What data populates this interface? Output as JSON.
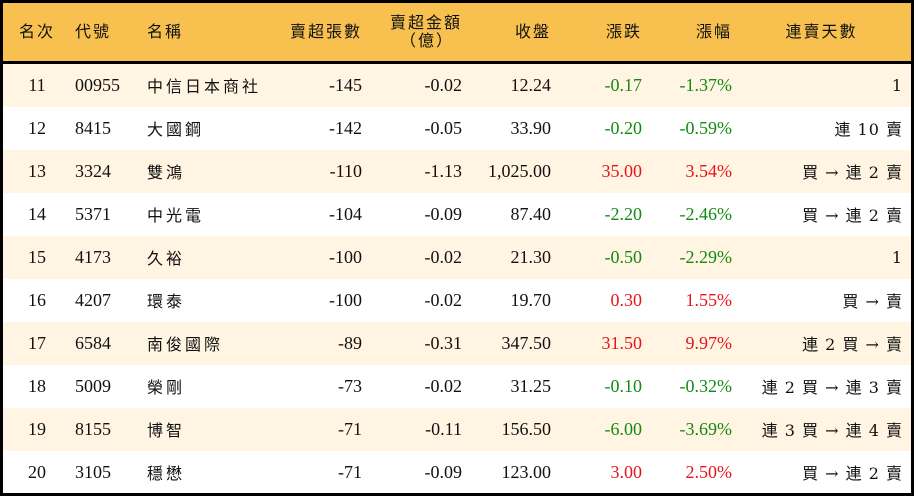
{
  "colors": {
    "header": "#F8C14F",
    "row_alt": "#FFF5E2",
    "up": "#E8141B",
    "down": "#138A12"
  },
  "headers": {
    "rank": "名次",
    "code": "代號",
    "name": "名稱",
    "net_sell_lots": "賣超張數",
    "net_sell_amount": "賣超金額",
    "net_sell_amount_unit": "（億）",
    "close": "收盤",
    "change": "漲跌",
    "change_pct": "漲幅",
    "streak": "連賣天數"
  },
  "rows": [
    {
      "rank": "11",
      "code": "00955",
      "name": "中信日本商社",
      "lots": "-145",
      "amount": "-0.02",
      "close": "12.24",
      "change": "-0.17",
      "pct": "-1.37%",
      "streak": "1",
      "dir": "down"
    },
    {
      "rank": "12",
      "code": "8415",
      "name": "大國鋼",
      "lots": "-142",
      "amount": "-0.05",
      "close": "33.90",
      "change": "-0.20",
      "pct": "-0.59%",
      "streak": "連 10 賣",
      "dir": "down"
    },
    {
      "rank": "13",
      "code": "3324",
      "name": "雙鴻",
      "lots": "-110",
      "amount": "-1.13",
      "close": "1,025.00",
      "change": "35.00",
      "pct": "3.54%",
      "streak": "買 → 連 2 賣",
      "dir": "up"
    },
    {
      "rank": "14",
      "code": "5371",
      "name": "中光電",
      "lots": "-104",
      "amount": "-0.09",
      "close": "87.40",
      "change": "-2.20",
      "pct": "-2.46%",
      "streak": "買 → 連 2 賣",
      "dir": "down"
    },
    {
      "rank": "15",
      "code": "4173",
      "name": "久裕",
      "lots": "-100",
      "amount": "-0.02",
      "close": "21.30",
      "change": "-0.50",
      "pct": "-2.29%",
      "streak": "1",
      "dir": "down"
    },
    {
      "rank": "16",
      "code": "4207",
      "name": "環泰",
      "lots": "-100",
      "amount": "-0.02",
      "close": "19.70",
      "change": "0.30",
      "pct": "1.55%",
      "streak": "買 → 賣",
      "dir": "up"
    },
    {
      "rank": "17",
      "code": "6584",
      "name": "南俊國際",
      "lots": "-89",
      "amount": "-0.31",
      "close": "347.50",
      "change": "31.50",
      "pct": "9.97%",
      "streak": "連 2 買 → 賣",
      "dir": "up"
    },
    {
      "rank": "18",
      "code": "5009",
      "name": "榮剛",
      "lots": "-73",
      "amount": "-0.02",
      "close": "31.25",
      "change": "-0.10",
      "pct": "-0.32%",
      "streak": "連 2 買 → 連 3 賣",
      "dir": "down"
    },
    {
      "rank": "19",
      "code": "8155",
      "name": "博智",
      "lots": "-71",
      "amount": "-0.11",
      "close": "156.50",
      "change": "-6.00",
      "pct": "-3.69%",
      "streak": "連 3 買 → 連 4 賣",
      "dir": "down"
    },
    {
      "rank": "20",
      "code": "3105",
      "name": "穩懋",
      "lots": "-71",
      "amount": "-0.09",
      "close": "123.00",
      "change": "3.00",
      "pct": "2.50%",
      "streak": "買 → 連 2 賣",
      "dir": "up"
    }
  ]
}
